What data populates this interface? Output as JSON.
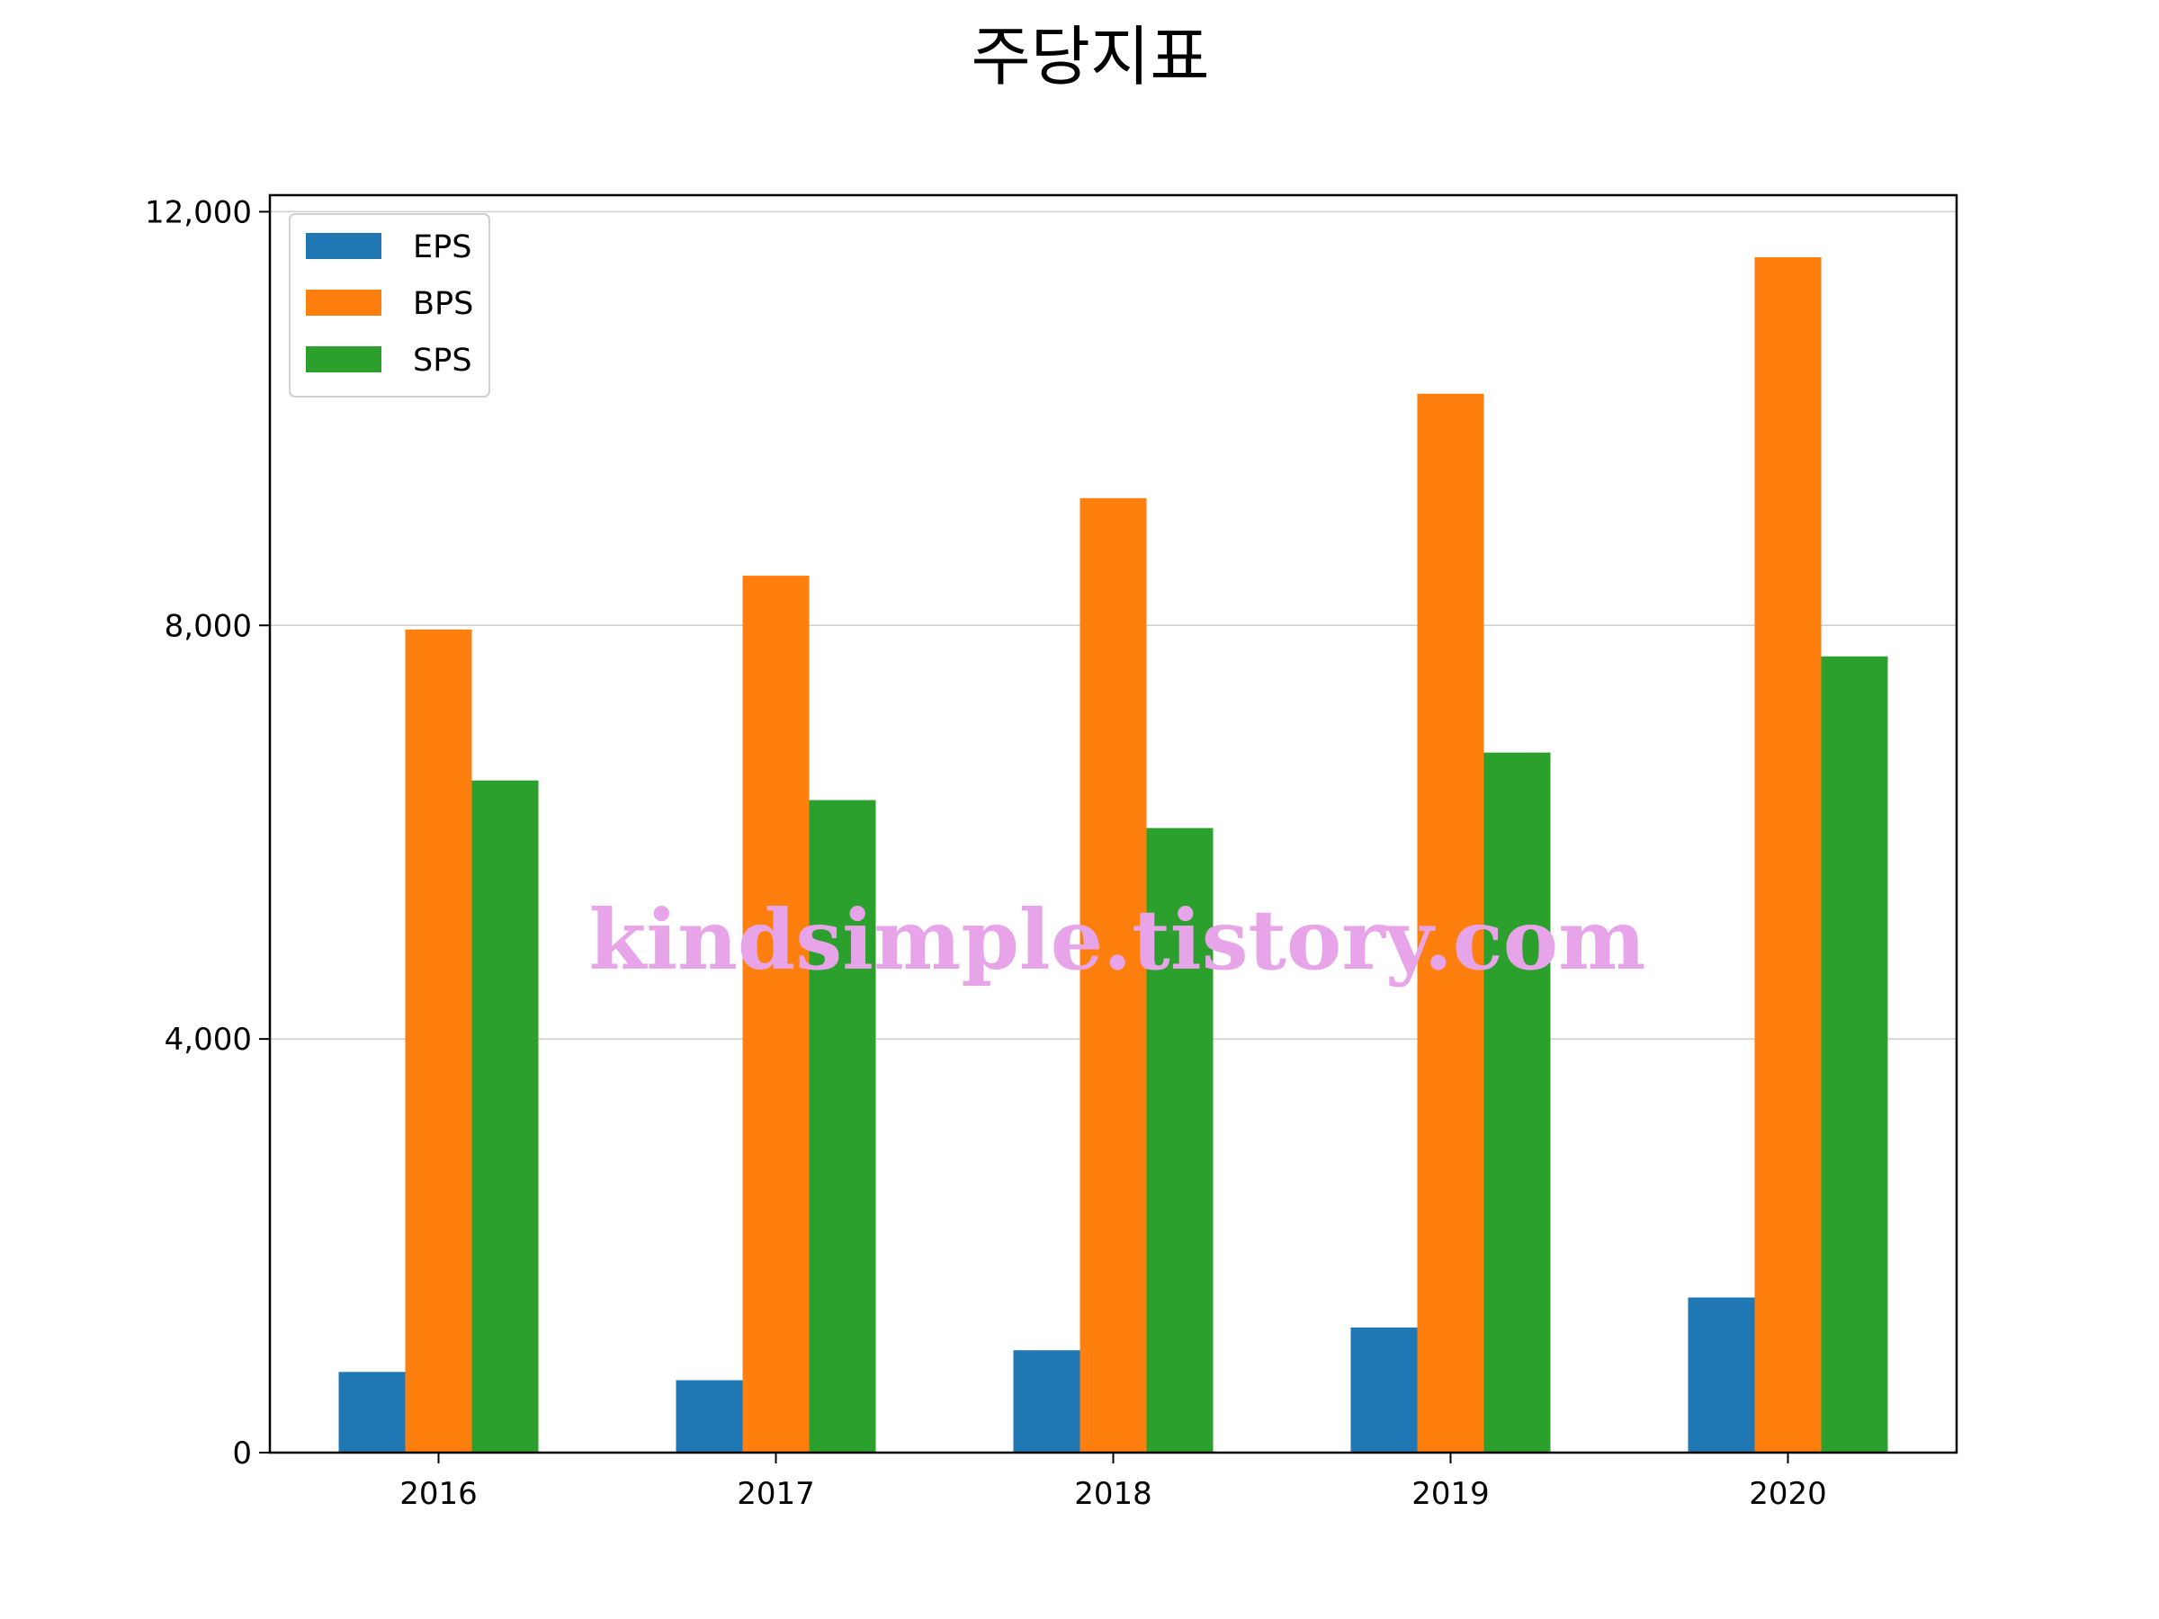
{
  "chart_data": {
    "type": "bar",
    "title": "주당지표",
    "categories": [
      "2016",
      "2017",
      "2018",
      "2019",
      "2020"
    ],
    "series": [
      {
        "name": "EPS",
        "color": "#1f77b4",
        "values": [
          780,
          700,
          990,
          1210,
          1500
        ]
      },
      {
        "name": "BPS",
        "color": "#ff7f0e",
        "values": [
          7960,
          8480,
          9230,
          10240,
          11560
        ]
      },
      {
        "name": "SPS",
        "color": "#2ca02c",
        "values": [
          6500,
          6310,
          6040,
          6770,
          7700
        ]
      }
    ],
    "y_ticks": [
      "0",
      "4,000",
      "8,000",
      "12,000"
    ],
    "ylim": [
      0,
      12160
    ],
    "grid": "horizontal",
    "legend": "top-left",
    "watermark": "kindsimple.tistory.com"
  }
}
